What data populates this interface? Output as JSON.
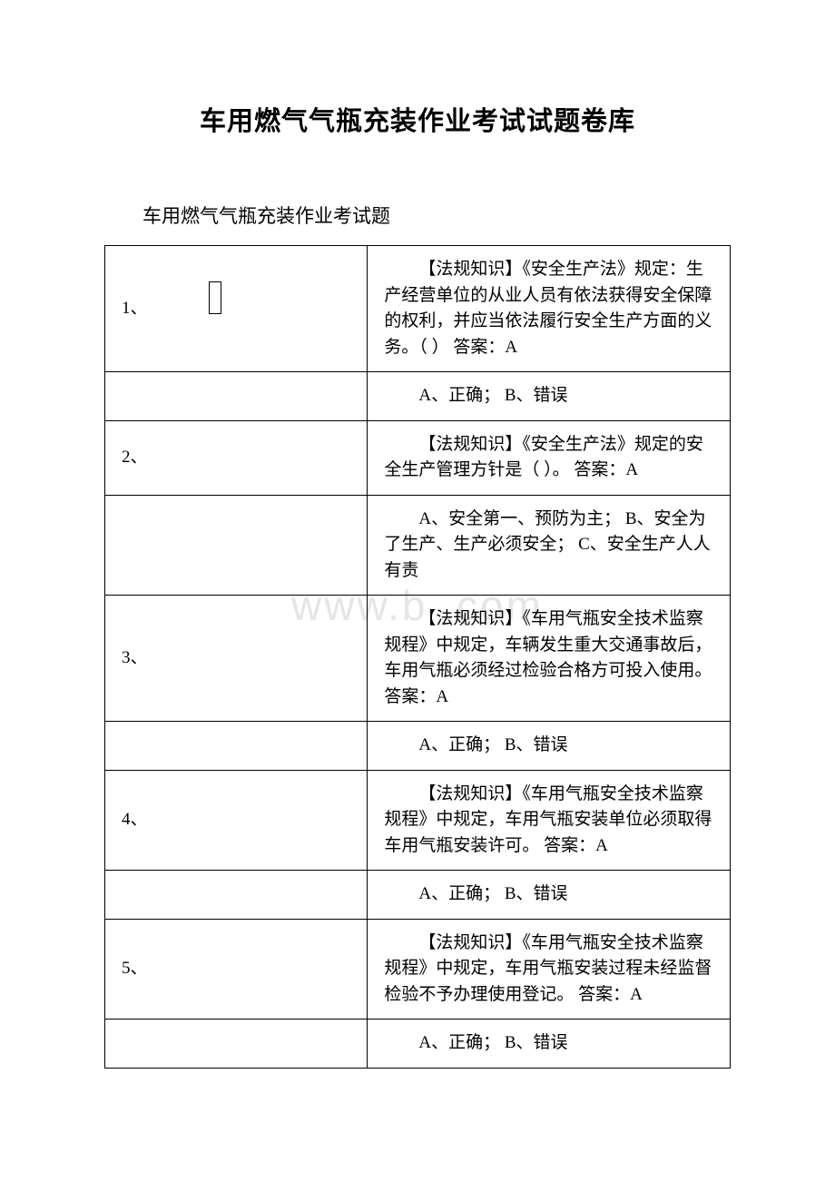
{
  "document": {
    "title": "车用燃气气瓶充装作业考试试题卷库",
    "subtitle": "车用燃气气瓶充装作业考试题",
    "watermark": "www.b    .com",
    "text_color": "#000000",
    "background_color": "#ffffff",
    "watermark_color": "#e5e5e5",
    "border_color": "#000000",
    "title_fontsize": 29,
    "subtitle_fontsize": 21,
    "body_fontsize": 19
  },
  "questions": [
    {
      "number": "1、",
      "content": "【法规知识】《安全生产法》规定：生产经营单位的从业人员有依法获得安全保障的权利，并应当依法履行安全生产方面的义务。（ ）  答案：A",
      "options": "A、正确； B、错误"
    },
    {
      "number": "2、",
      "content": "【法规知识】《安全生产法》规定的安全生产管理方针是（ ）。  答案：A",
      "options": "A、安全第一、预防为主； B、安全为了生产、生产必须安全； C、安全生产人人有责"
    },
    {
      "number": "3、",
      "content": "【法规知识】《车用气瓶安全技术监察规程》中规定，车辆发生重大交通事故后，车用气瓶必须经过检验合格方可投入使用。  答案：A",
      "options": "A、正确； B、错误"
    },
    {
      "number": "4、",
      "content": "【法规知识】《车用气瓶安全技术监察规程》中规定，车用气瓶安装单位必须取得车用气瓶安装许可。  答案：A",
      "options": "A、正确； B、错误"
    },
    {
      "number": "5、",
      "content": "【法规知识】《车用气瓶安全技术监察规程》中规定，车用气瓶安装过程未经监督检验不予办理使用登记。  答案：A",
      "options": "A、正确； B、错误"
    }
  ]
}
